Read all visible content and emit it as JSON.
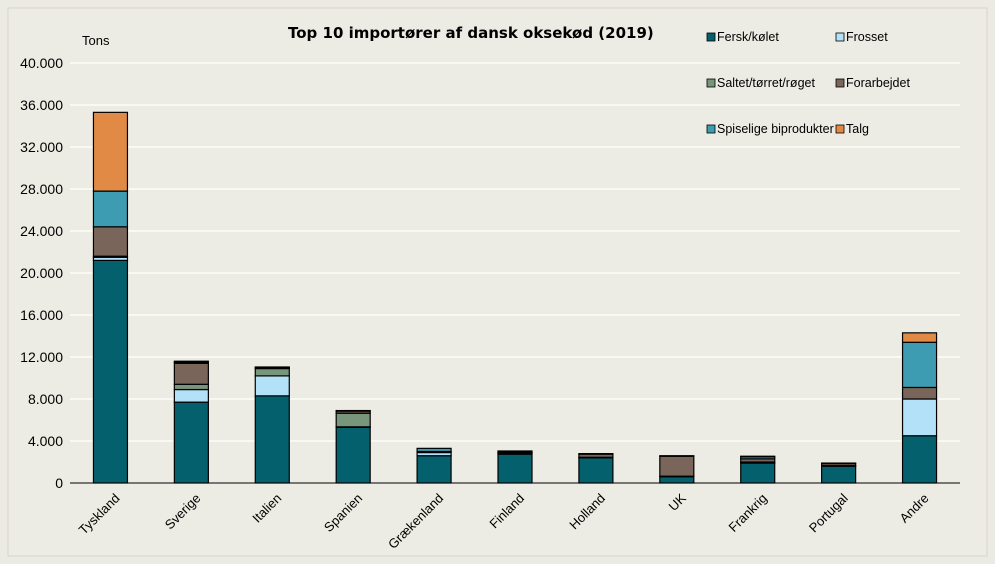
{
  "chart_data": {
    "type": "bar",
    "stacked": true,
    "title": "Top 10 importører af dansk oksekød (2019)",
    "unit_label": "Tons",
    "ylim": [
      0,
      40000
    ],
    "yticks": [
      "0",
      "4.000",
      "8.000",
      "12.000",
      "16.000",
      "20.000",
      "24.000",
      "28.000",
      "32.000",
      "36.000",
      "40.000"
    ],
    "ytick_values": [
      0,
      4000,
      8000,
      12000,
      16000,
      20000,
      24000,
      28000,
      32000,
      36000,
      40000
    ],
    "grid": true,
    "legend_position": "top-right",
    "categories": [
      "Tyskland",
      "Sverige",
      "Italien",
      "Spanien",
      "Grækenland",
      "Finland",
      "Holland",
      "UK",
      "Frankrig",
      "Portugal",
      "Andre"
    ],
    "series": [
      {
        "name": "Fersk/kølet",
        "color": "#05606e",
        "values": [
          21200,
          7700,
          8300,
          5300,
          2600,
          2750,
          2400,
          600,
          1900,
          1600,
          4500
        ]
      },
      {
        "name": "Frosset",
        "color": "#b2e1f8",
        "values": [
          300,
          1200,
          1900,
          50,
          300,
          100,
          50,
          50,
          50,
          50,
          3500
        ]
      },
      {
        "name": "Saltet/tørret/røget",
        "color": "#77967b",
        "values": [
          100,
          500,
          700,
          1300,
          0,
          0,
          0,
          0,
          50,
          0,
          0
        ]
      },
      {
        "name": "Forarbejdet",
        "color": "#79655a",
        "values": [
          2800,
          2000,
          100,
          200,
          100,
          100,
          300,
          1900,
          300,
          200,
          1100
        ]
      },
      {
        "name": "Spiselige biprodukter",
        "color": "#3d9cb1",
        "values": [
          3400,
          100,
          50,
          50,
          300,
          100,
          50,
          50,
          200,
          50,
          4300
        ]
      },
      {
        "name": "Talg",
        "color": "#e08a46",
        "values": [
          7500,
          100,
          0,
          0,
          0,
          0,
          0,
          0,
          50,
          0,
          900
        ]
      }
    ]
  }
}
